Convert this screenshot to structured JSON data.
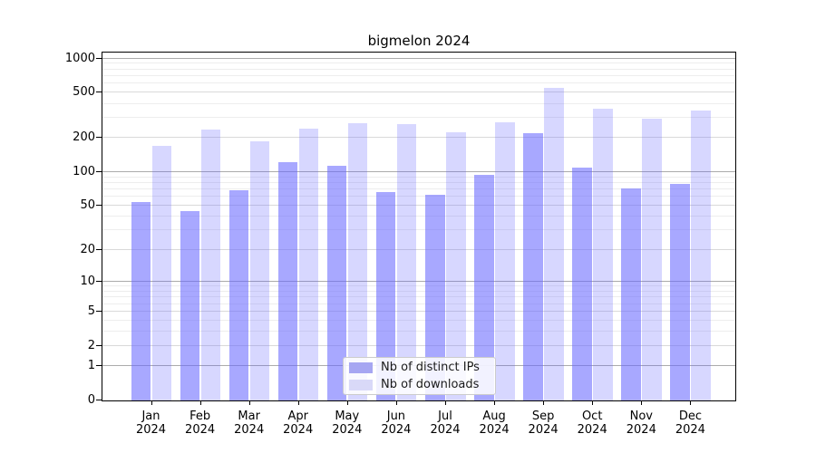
{
  "chart_data": {
    "type": "bar",
    "title": "bigmelon 2024",
    "categories": [
      "Jan 2024",
      "Feb 2024",
      "Mar 2024",
      "Apr 2024",
      "May 2024",
      "Jun 2024",
      "Jul 2024",
      "Aug 2024",
      "Sep 2024",
      "Oct 2024",
      "Nov 2024",
      "Dec 2024"
    ],
    "series": [
      {
        "name": "Nb of distinct IPs",
        "color": "#a6a6f2",
        "rgba": "rgba(102,102,255,0.57)",
        "values": [
          54,
          45,
          69,
          123,
          114,
          66,
          63,
          95,
          220,
          110,
          71,
          78
        ]
      },
      {
        "name": "Nb of downloads",
        "color": "#d9d9f8",
        "rgba": "rgba(102,102,255,0.26)",
        "values": [
          170,
          236,
          187,
          244,
          272,
          266,
          226,
          277,
          550,
          365,
          298,
          352
        ]
      }
    ],
    "yscale": "log1p",
    "yticks": [
      0,
      1,
      2,
      5,
      10,
      20,
      50,
      100,
      200,
      500,
      1000
    ],
    "ytick_labels": [
      "0",
      "1",
      "2",
      "5",
      "10",
      "20",
      "50",
      "100",
      "200",
      "500",
      "1000"
    ],
    "ylim": [
      0,
      1170
    ],
    "grid": true,
    "legend_position": "lower center",
    "xlabel": "",
    "ylabel": ""
  },
  "style_colors": {
    "major_grid": "#ababab",
    "mid_grid": "#d9d9d9",
    "minor_grid": "#ededed",
    "spine": "#000000"
  }
}
